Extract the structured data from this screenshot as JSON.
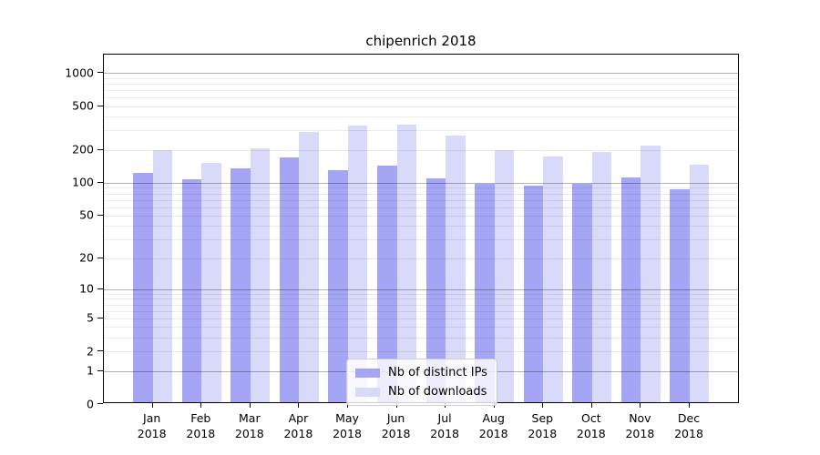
{
  "title": "chipenrich 2018",
  "colors": {
    "ips_bar": "#a5a5f5",
    "downloads_bar": "#d9d9fa",
    "grid_minor": "rgba(0,0,0,0.08)",
    "grid_major_power10": "rgba(0,0,0,0.30)",
    "axis": "#000000",
    "legend_border": "#cccccc"
  },
  "legend": {
    "items": [
      {
        "label": "Nb of distinct IPs",
        "color_key": "ips_bar"
      },
      {
        "label": "Nb of downloads",
        "color_key": "downloads_bar"
      }
    ]
  },
  "chart_data": {
    "type": "bar",
    "title": "chipenrich 2018",
    "categories": [
      "Jan 2018",
      "Feb 2018",
      "Mar 2018",
      "Apr 2018",
      "May 2018",
      "Jun 2018",
      "Jul 2018",
      "Aug 2018",
      "Sep 2018",
      "Oct 2018",
      "Nov 2018",
      "Dec 2018"
    ],
    "series": [
      {
        "name": "Nb of distinct IPs",
        "color": "#a5a5f5",
        "values": [
          118,
          104,
          131,
          163,
          127,
          139,
          106,
          95,
          91,
          95,
          108,
          84
        ]
      },
      {
        "name": "Nb of downloads",
        "color": "#d9d9fa",
        "values": [
          190,
          147,
          200,
          282,
          320,
          326,
          259,
          190,
          168,
          185,
          210,
          141
        ]
      }
    ],
    "xlabel": "",
    "ylabel": "",
    "yscale": "log1p",
    "yticks": [
      1000,
      500,
      200,
      100,
      50,
      20,
      10,
      5,
      2,
      1,
      0
    ],
    "grid_power10_lines": [
      1,
      10,
      100,
      1000
    ],
    "ylim": [
      0,
      1466
    ],
    "grid": true,
    "legend_position": "lower center"
  }
}
